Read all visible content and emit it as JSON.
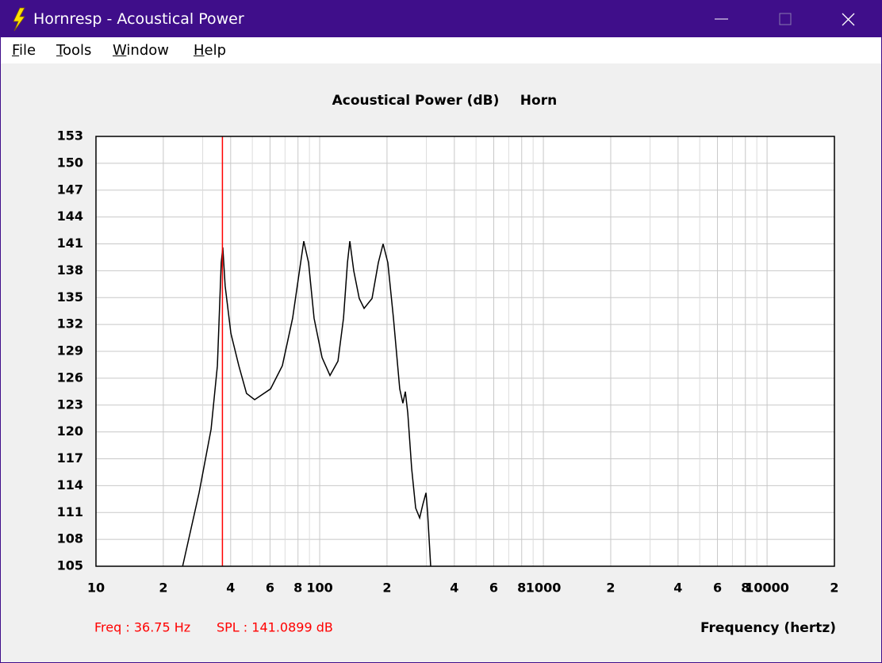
{
  "window": {
    "title": "Hornresp - Acoustical Power"
  },
  "menu": [
    "File",
    "Tools",
    "Window",
    "Help"
  ],
  "chart_data": {
    "type": "line",
    "title": "Acoustical Power (dB)",
    "subtitle": "Horn",
    "x_label": "Frequency (hertz)",
    "x_scale": "log",
    "xlim": [
      10,
      20000
    ],
    "ylim": [
      105,
      153
    ],
    "xticks": [
      10,
      {
        "value": 20,
        "label": "2"
      },
      {
        "value": 40,
        "label": "4"
      },
      {
        "value": 60,
        "label": "6"
      },
      {
        "value": 80,
        "label": "8"
      },
      100,
      {
        "value": 200,
        "label": "2"
      },
      {
        "value": 400,
        "label": "4"
      },
      {
        "value": 600,
        "label": "6"
      },
      {
        "value": 800,
        "label": "8"
      },
      1000,
      {
        "value": 2000,
        "label": "2"
      },
      {
        "value": 4000,
        "label": "4"
      },
      {
        "value": 6000,
        "label": "6"
      },
      {
        "value": 8000,
        "label": "8"
      },
      10000,
      {
        "value": 20000,
        "label": "2"
      }
    ],
    "xminorticks": [
      30,
      50,
      70,
      90,
      300,
      500,
      700,
      900,
      3000,
      5000,
      7000,
      9000
    ],
    "yticks": [
      105,
      108,
      111,
      114,
      117,
      120,
      123,
      126,
      129,
      132,
      135,
      138,
      141,
      144,
      147,
      150,
      153
    ],
    "grid": true,
    "x": [
      24.4,
      28.9,
      32.7,
      34.9,
      36.3,
      36.9,
      37.8,
      40.1,
      43.5,
      47.1,
      51.2,
      60.3,
      68.1,
      75.7,
      82.2,
      84.9,
      89.2,
      94.4,
      102.5,
      111.2,
      120.7,
      127.8,
      133.1,
      136.4,
      142,
      150.3,
      158,
      171.4,
      182.9,
      192.1,
      201.7,
      213.7,
      228,
      235.5,
      241.5,
      247.7,
      257.8,
      268.6,
      279.9,
      289.2,
      298.8,
      303.7,
      313.5
    ],
    "series": [
      {
        "color": "#000000",
        "values": [
          105,
          113.2,
          120.3,
          127.4,
          138.9,
          140.6,
          136.3,
          131,
          127.4,
          124.3,
          123.6,
          124.8,
          127.4,
          132.7,
          138.9,
          141.3,
          138.9,
          132.7,
          128.3,
          126.3,
          127.9,
          132.7,
          138.9,
          141.3,
          138,
          134.9,
          133.8,
          134.9,
          138.9,
          141,
          138.9,
          132.7,
          124.8,
          123.2,
          124.5,
          122.1,
          115.9,
          111.5,
          110.4,
          111.9,
          113.2,
          111,
          105
        ]
      }
    ],
    "cursor": {
      "freq": 36.75,
      "color": "#ff0000",
      "freq_label": "Freq : 36.75 Hz",
      "spl_label": "SPL : 141.0899 dB"
    }
  }
}
